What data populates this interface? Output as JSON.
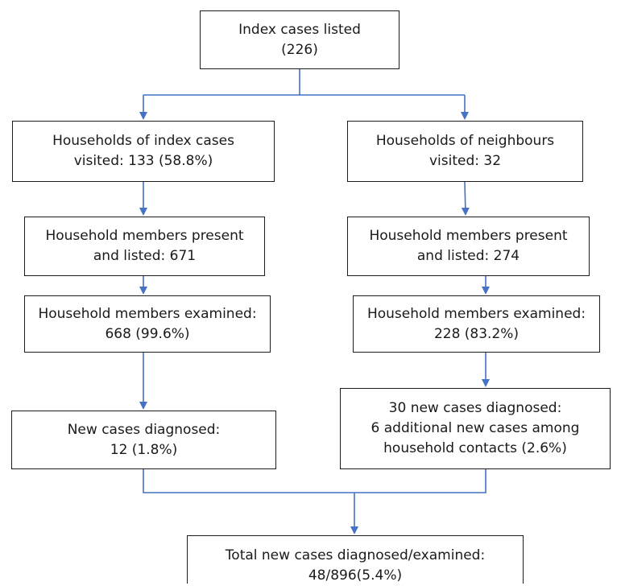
{
  "colors": {
    "connector": "#4472C4",
    "box_border": "#1c1c1c",
    "text": "#1a1a1a"
  },
  "boxes": {
    "index": {
      "lines": [
        "Index cases listed",
        "(226)"
      ]
    },
    "hh_index": {
      "lines": [
        "Households of index cases",
        "visited: 133 (58.8%)"
      ]
    },
    "hh_neigh": {
      "lines": [
        "Households of neighbours",
        "visited: 32"
      ]
    },
    "members_left": {
      "lines": [
        "Household members present",
        "and listed: 671"
      ]
    },
    "members_right": {
      "lines": [
        "Household members present",
        "and listed: 274"
      ]
    },
    "examined_left": {
      "lines": [
        "Household members examined:",
        "668 (99.6%)"
      ]
    },
    "examined_right": {
      "lines": [
        "Household members examined:",
        "228 (83.2%)"
      ]
    },
    "new_left": {
      "lines": [
        "New cases diagnosed:",
        "12 (1.8%)"
      ]
    },
    "new_right": {
      "lines": [
        "30 new cases diagnosed:",
        "6 additional new cases among",
        "household contacts (2.6%)"
      ]
    },
    "total": {
      "lines": [
        "Total new cases diagnosed/examined:",
        "48/896(5.4%)"
      ]
    }
  }
}
